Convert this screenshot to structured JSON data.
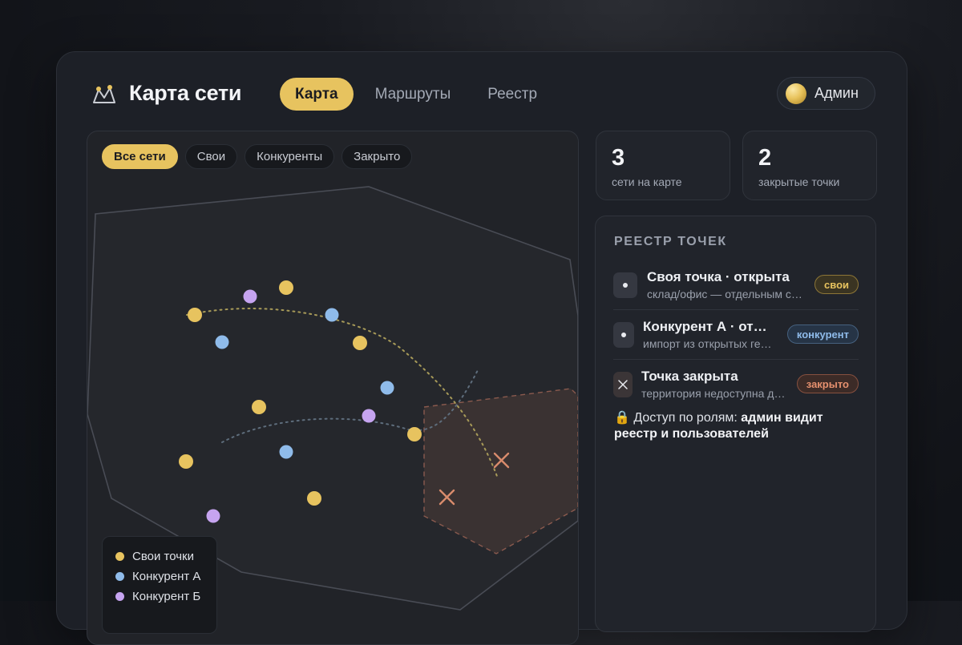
{
  "header": {
    "title": "Карта сети",
    "nav": [
      {
        "label": "Карта",
        "active": true
      },
      {
        "label": "Маршруты",
        "active": false
      },
      {
        "label": "Реестр",
        "active": false
      }
    ],
    "user": {
      "name": "Админ"
    }
  },
  "map": {
    "filters": [
      {
        "label": "Все сети",
        "active": true
      },
      {
        "label": "Свои",
        "active": false
      },
      {
        "label": "Конкуренты",
        "active": false
      },
      {
        "label": "Закрыто",
        "active": false
      }
    ],
    "legend": [
      {
        "label": "Свои точки",
        "color": "#e7c35f"
      },
      {
        "label": "Конкурент А",
        "color": "#8fbbea"
      },
      {
        "label": "Конкурент Б",
        "color": "#c6a4f0"
      }
    ],
    "colors": {
      "own": "#e7c35f",
      "competitor_a": "#8fbbea",
      "competitor_b": "#c6a4f0",
      "closed": "#d98b6c"
    }
  },
  "stats": [
    {
      "value": "3",
      "label": "сети на карте"
    },
    {
      "value": "2",
      "label": "закрытые точки"
    }
  ],
  "registry": {
    "title": "РЕЕСТР ТОЧЕК",
    "items": [
      {
        "icon": "dot-icon",
        "name": "Своя точка · открыта",
        "sub": "склад/офис — отдельным слоем",
        "badge": "свои"
      },
      {
        "icon": "dot-icon",
        "name": "Конкурент А · открыта",
        "sub": "импорт из открытых геоданных",
        "badge": "конкурент"
      },
      {
        "icon": "close-icon",
        "name": "Точка закрыта",
        "sub": "территория недоступна для работы",
        "badge": "закрыто"
      }
    ],
    "access_prefix": "Доступ по ролям:",
    "access_bold": "админ видит реестр и пользователей"
  }
}
